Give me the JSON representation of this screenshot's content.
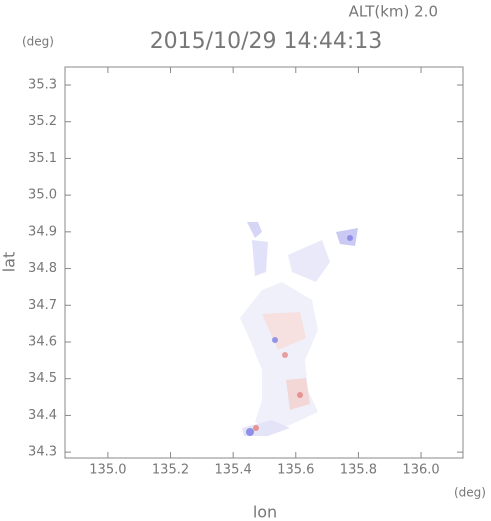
{
  "chart_data": {
    "type": "map",
    "title": "2015/10/29 14:44:13",
    "altitude_label": "ALT(km)  2.0",
    "xlabel": "lon",
    "ylabel": "lat",
    "xunit": "(deg)",
    "yunit": "(deg)",
    "xlim": [
      134.863,
      136.134
    ],
    "ylim": [
      34.284,
      35.349
    ],
    "xticks": [
      {
        "value": 135,
        "label": "135.0"
      },
      135.2,
      135.4,
      135.6,
      135.8,
      {
        "value": 136,
        "label": "136.0"
      }
    ],
    "yticks": [
      34.3,
      34.4,
      34.5,
      34.6,
      34.7,
      34.8,
      34.9,
      {
        "value": 35,
        "label": "35.0"
      },
      35.1,
      35.2,
      35.3
    ]
  }
}
